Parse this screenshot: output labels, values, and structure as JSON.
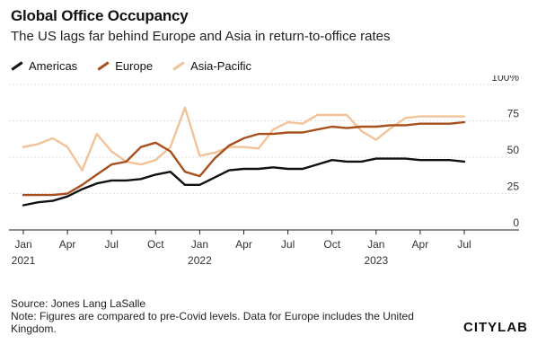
{
  "header": {
    "title": "Global Office Occupancy",
    "subtitle": "The US lags far behind Europe and Asia in return-to-office rates"
  },
  "footer": {
    "source": "Source: Jones Lang LaSalle",
    "note": "Note: Figures are compared to pre-Covid levels. Data for Europe includes the United Kingdom.",
    "brand": "CITYLAB"
  },
  "chart_data": {
    "type": "line",
    "title": "Global Office Occupancy",
    "subtitle": "The US lags far behind Europe and Asia in return-to-office rates",
    "x_months": [
      "2021-01",
      "2021-02",
      "2021-03",
      "2021-04",
      "2021-05",
      "2021-06",
      "2021-07",
      "2021-08",
      "2021-09",
      "2021-10",
      "2021-11",
      "2021-12",
      "2022-01",
      "2022-02",
      "2022-03",
      "2022-04",
      "2022-05",
      "2022-06",
      "2022-07",
      "2022-08",
      "2022-09",
      "2022-10",
      "2022-11",
      "2022-12",
      "2023-01",
      "2023-02",
      "2023-03",
      "2023-04",
      "2023-05",
      "2023-06",
      "2023-07"
    ],
    "x_ticks": [
      {
        "month": "2021-01",
        "label": "Jan",
        "year": "2021"
      },
      {
        "month": "2021-04",
        "label": "Apr"
      },
      {
        "month": "2021-07",
        "label": "Jul"
      },
      {
        "month": "2021-10",
        "label": "Oct"
      },
      {
        "month": "2022-01",
        "label": "Jan",
        "year": "2022"
      },
      {
        "month": "2022-04",
        "label": "Apr"
      },
      {
        "month": "2022-07",
        "label": "Jul"
      },
      {
        "month": "2022-10",
        "label": "Oct"
      },
      {
        "month": "2023-01",
        "label": "Jan",
        "year": "2023"
      },
      {
        "month": "2023-04",
        "label": "Apr"
      },
      {
        "month": "2023-07",
        "label": "Jul"
      }
    ],
    "y_ticks": [
      {
        "value": 0,
        "label": "0"
      },
      {
        "value": 25,
        "label": "25"
      },
      {
        "value": 50,
        "label": "50"
      },
      {
        "value": 75,
        "label": "75"
      },
      {
        "value": 100,
        "label": "100%"
      }
    ],
    "ylim": [
      0,
      100
    ],
    "grid": "horizontal",
    "legend_position": "top-left",
    "series": [
      {
        "name": "Americas",
        "color": "#111111",
        "values": [
          17,
          19,
          20,
          23,
          28,
          32,
          34,
          34,
          35,
          38,
          40,
          31,
          31,
          36,
          41,
          42,
          42,
          43,
          42,
          42,
          45,
          48,
          47,
          47,
          49,
          49,
          49,
          48,
          48,
          48,
          47
        ]
      },
      {
        "name": "Europe",
        "color": "#a6501e",
        "values": [
          24,
          24,
          24,
          25,
          31,
          38,
          45,
          47,
          57,
          60,
          54,
          40,
          37,
          49,
          58,
          63,
          66,
          66,
          67,
          67,
          69,
          71,
          70,
          71,
          71,
          72,
          72,
          73,
          73,
          73,
          74
        ]
      },
      {
        "name": "Asia-Pacific",
        "color": "#f2c298",
        "values": [
          57,
          59,
          63,
          57,
          41,
          66,
          54,
          47,
          45,
          48,
          57,
          84,
          51,
          53,
          57,
          57,
          56,
          69,
          74,
          73,
          79,
          79,
          79,
          68,
          62,
          70,
          77,
          78,
          78,
          78,
          78
        ]
      }
    ]
  }
}
